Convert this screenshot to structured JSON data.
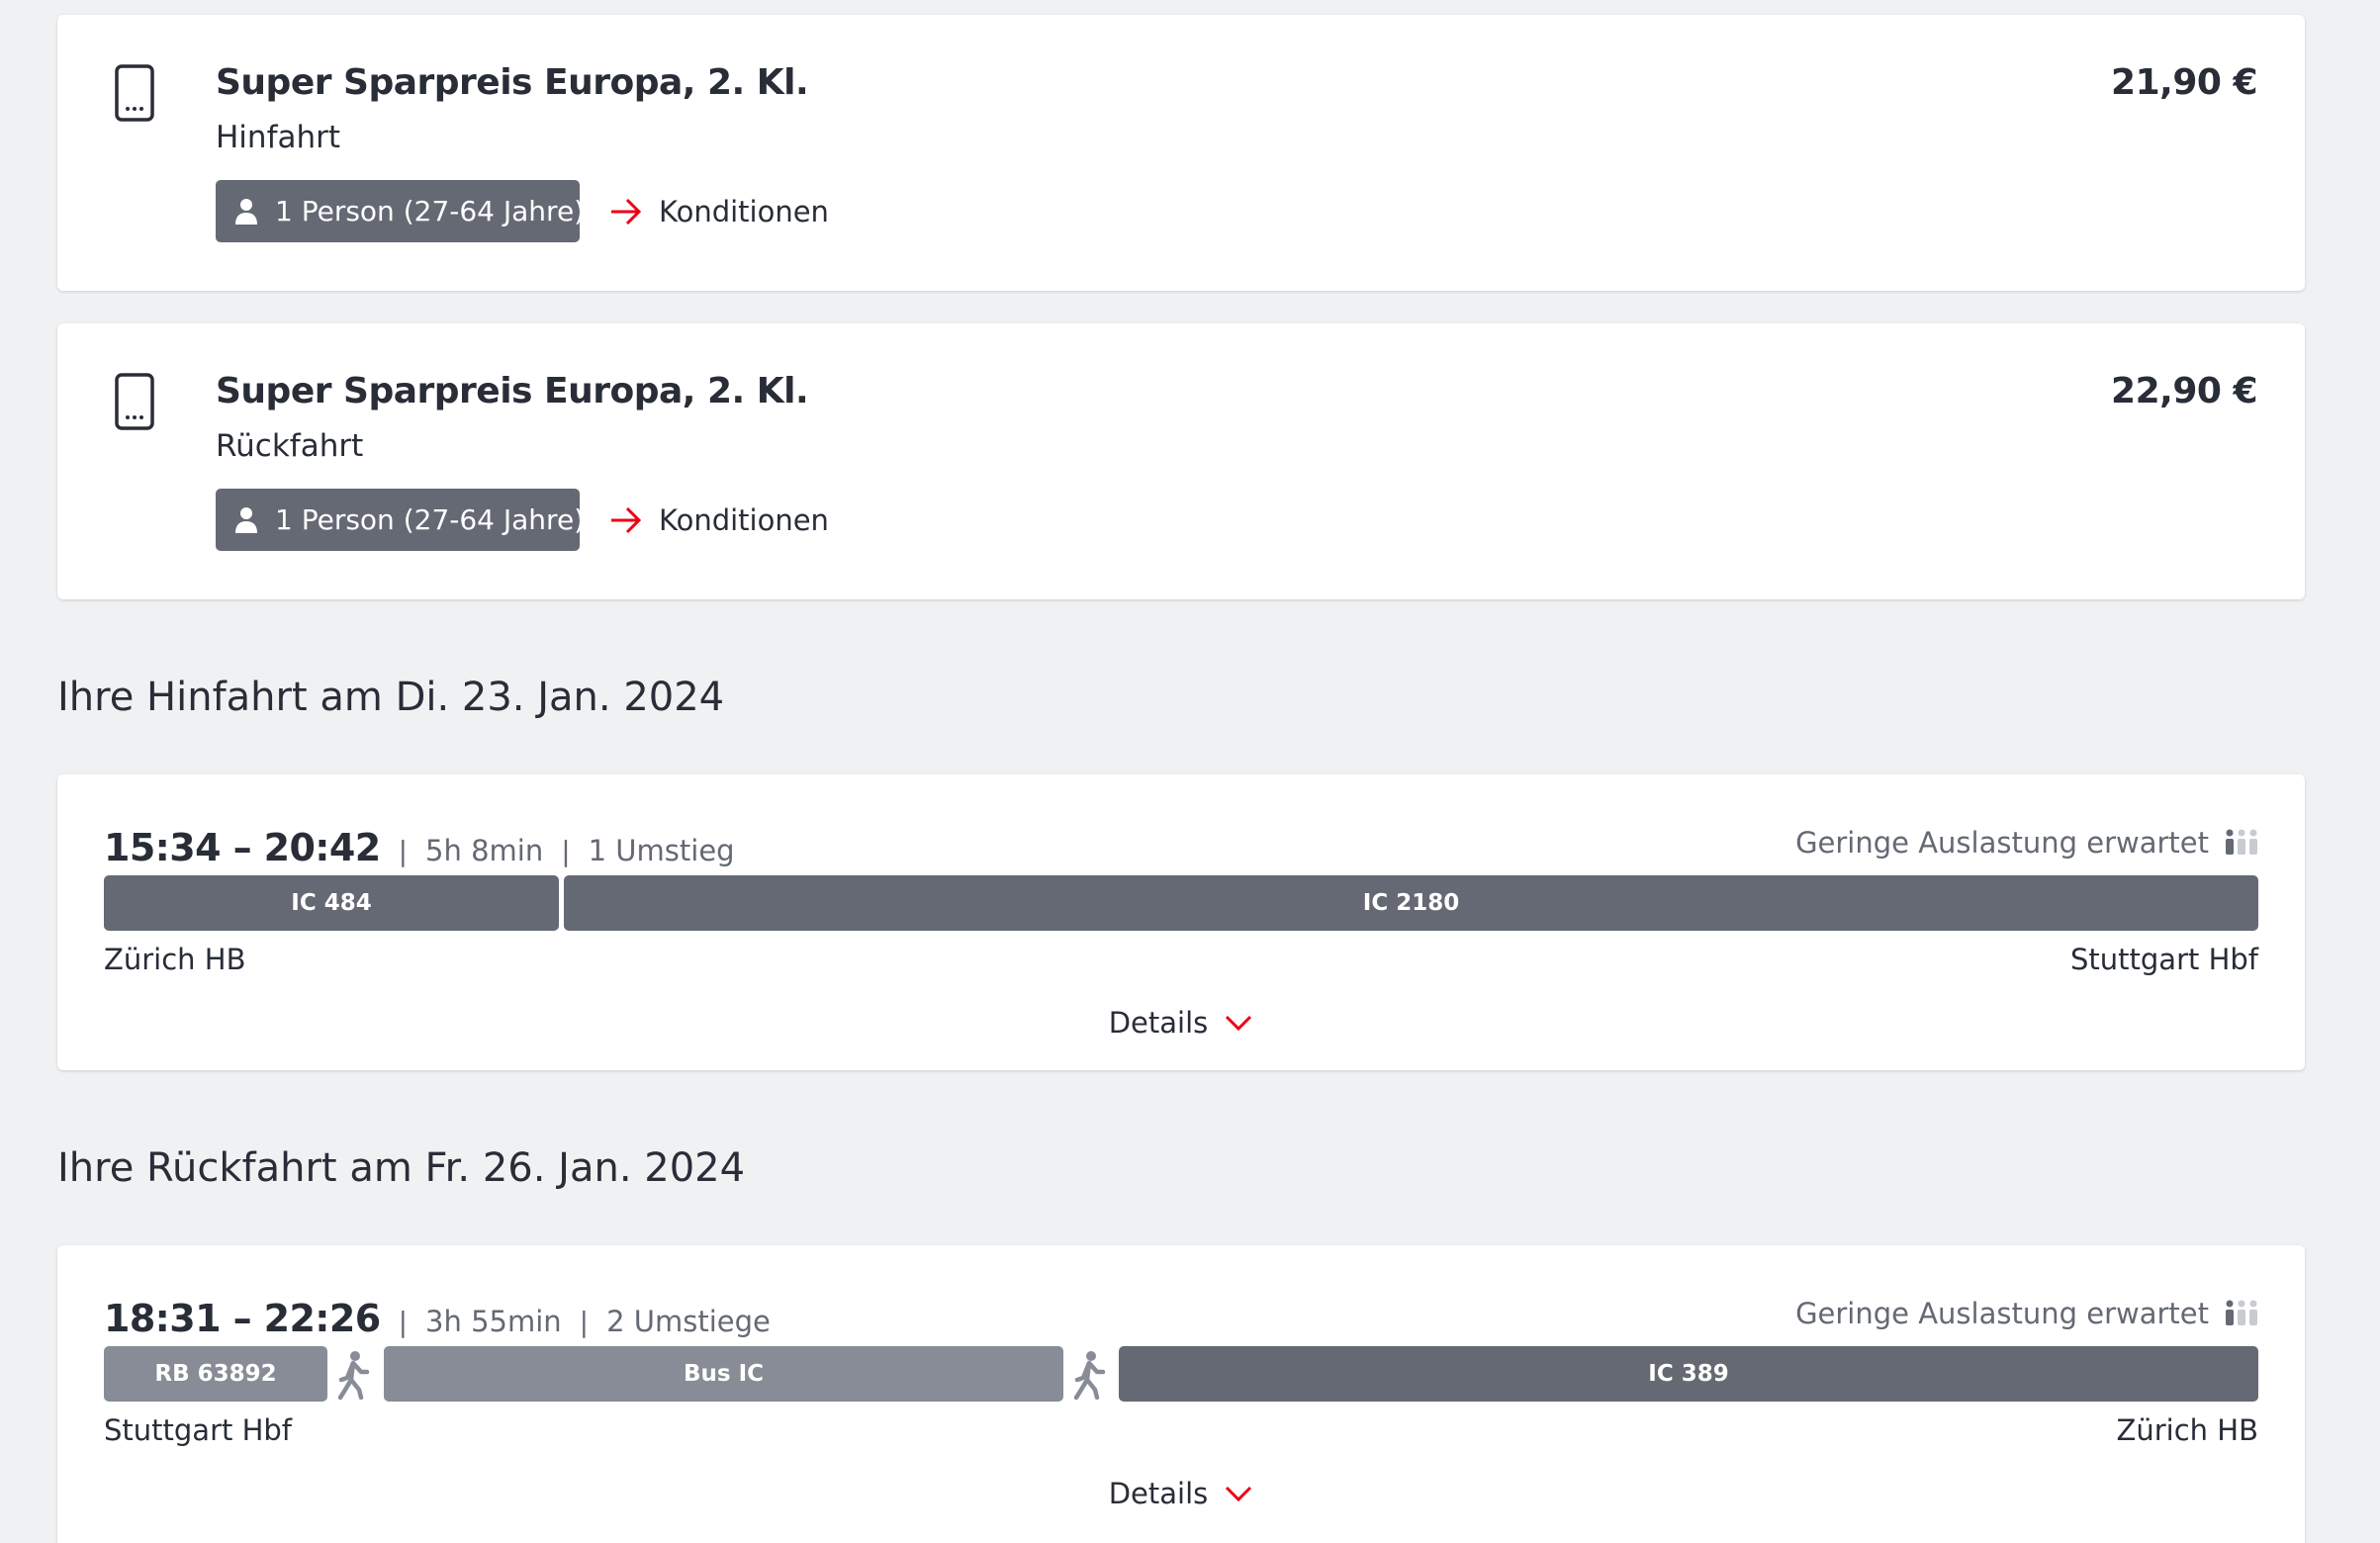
{
  "offers": [
    {
      "title": "Super Sparpreis Europa, 2. Kl.",
      "direction": "Hinfahrt",
      "price": "21,90 €",
      "passenger": "1 Person (27-64 Jahre)",
      "conditions_label": "Konditionen",
      "icon": "mobile-ticket-icon"
    },
    {
      "title": "Super Sparpreis Europa, 2. Kl.",
      "direction": "Rückfahrt",
      "price": "22,90 €",
      "passenger": "1 Person (27-64 Jahre)",
      "conditions_label": "Konditionen",
      "icon": "mobile-ticket-icon"
    }
  ],
  "outbound": {
    "heading": "Ihre Hinfahrt am Di. 23. Jan. 2024",
    "times": "15:34 – 20:42",
    "duration": "5h 8min",
    "changes": "1 Umstieg",
    "occupancy": "Geringe Auslastung erwartet",
    "segments": [
      {
        "label": "IC 484",
        "style": "dark"
      },
      {
        "label": "IC 2180",
        "style": "dark"
      }
    ],
    "from": "Zürich HB",
    "to": "Stuttgart Hbf",
    "details_label": "Details"
  },
  "return": {
    "heading": "Ihre Rückfahrt am Fr. 26. Jan. 2024",
    "times": "18:31 – 22:26",
    "duration": "3h 55min",
    "changes": "2 Umstiege",
    "occupancy": "Geringe Auslastung erwartet",
    "segments": [
      {
        "label": "RB 63892",
        "style": "light"
      },
      {
        "label": "walk",
        "style": "walk-icon"
      },
      {
        "label": "Bus IC",
        "style": "light"
      },
      {
        "label": "walk",
        "style": "walk-icon"
      },
      {
        "label": "IC 389",
        "style": "dark"
      }
    ],
    "from": "Stuttgart Hbf",
    "to": "Zürich HB",
    "details_label": "Details"
  },
  "colors": {
    "background": "#f0f1f2",
    "card": "#ffffff",
    "text": "#282d37",
    "muted": "#646973",
    "segment_dark": "#646973",
    "segment_light": "#878c96",
    "accent_red": "#ec0016"
  }
}
